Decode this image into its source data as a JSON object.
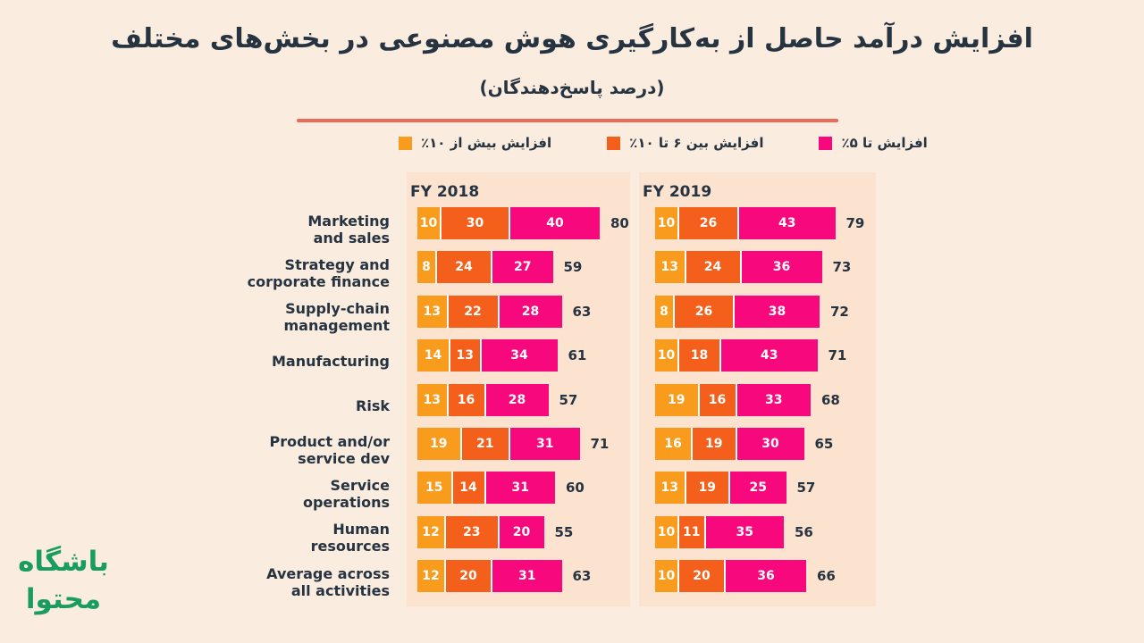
{
  "title": "افزایش درآمد حاصل از به‌کارگیری هوش مصنوعی در بخش‌های مختلف",
  "subtitle": "(درصد پاسخ‌دهندگان)",
  "colors": {
    "page_background": "#faecdf",
    "panel_background": "#fbe3d0",
    "divider": "#ee6a58",
    "text_dark": "#263340",
    "segment_gap": "#ffffff"
  },
  "legend": [
    {
      "label": "افزایش بیش از ۱۰٪",
      "color": "#f99b1c"
    },
    {
      "label": "افزایش بین ۶ تا ۱۰٪",
      "color": "#f4601c"
    },
    {
      "label": "افزایش تا ۵٪",
      "color": "#f8087d"
    }
  ],
  "logo": {
    "line1": "باشگاه",
    "line2": "محتوا",
    "color": "#199c5f"
  },
  "chart_data": {
    "type": "bar",
    "orientation": "horizontal",
    "stacked": true,
    "xmax": 80,
    "grid": false,
    "legend_position": "top",
    "series_names": [
      "افزایش بیش از ۱۰٪",
      "افزایش بین ۶ تا ۱۰٪",
      "افزایش تا ۵٪"
    ],
    "categories": [
      "Marketing\nand sales",
      "Strategy and\ncorporate finance",
      "Supply-chain\nmanagement",
      "Manufacturing",
      "Risk",
      "Product and/or\nservice dev",
      "Service\noperations",
      "Human\nresources",
      "Average across\nall activities"
    ],
    "panels": [
      {
        "title": "FY 2018",
        "rows": [
          {
            "values": [
              10,
              30,
              40
            ],
            "total": 80
          },
          {
            "values": [
              8,
              24,
              27
            ],
            "total": 59
          },
          {
            "values": [
              13,
              22,
              28
            ],
            "total": 63
          },
          {
            "values": [
              14,
              13,
              34
            ],
            "total": 61
          },
          {
            "values": [
              13,
              16,
              28
            ],
            "total": 57
          },
          {
            "values": [
              19,
              21,
              31
            ],
            "total": 71
          },
          {
            "values": [
              15,
              14,
              31
            ],
            "total": 60
          },
          {
            "values": [
              12,
              23,
              20
            ],
            "total": 55
          },
          {
            "values": [
              12,
              20,
              31
            ],
            "total": 63
          }
        ]
      },
      {
        "title": "FY 2019",
        "rows": [
          {
            "values": [
              10,
              26,
              43
            ],
            "total": 79
          },
          {
            "values": [
              13,
              24,
              36
            ],
            "total": 73
          },
          {
            "values": [
              8,
              26,
              38
            ],
            "total": 72
          },
          {
            "values": [
              10,
              18,
              43
            ],
            "total": 71
          },
          {
            "values": [
              19,
              16,
              33
            ],
            "total": 68
          },
          {
            "values": [
              16,
              19,
              30
            ],
            "total": 65
          },
          {
            "values": [
              13,
              19,
              25
            ],
            "total": 57
          },
          {
            "values": [
              10,
              11,
              35
            ],
            "total": 56
          },
          {
            "values": [
              10,
              20,
              36
            ],
            "total": 66
          }
        ]
      }
    ]
  }
}
